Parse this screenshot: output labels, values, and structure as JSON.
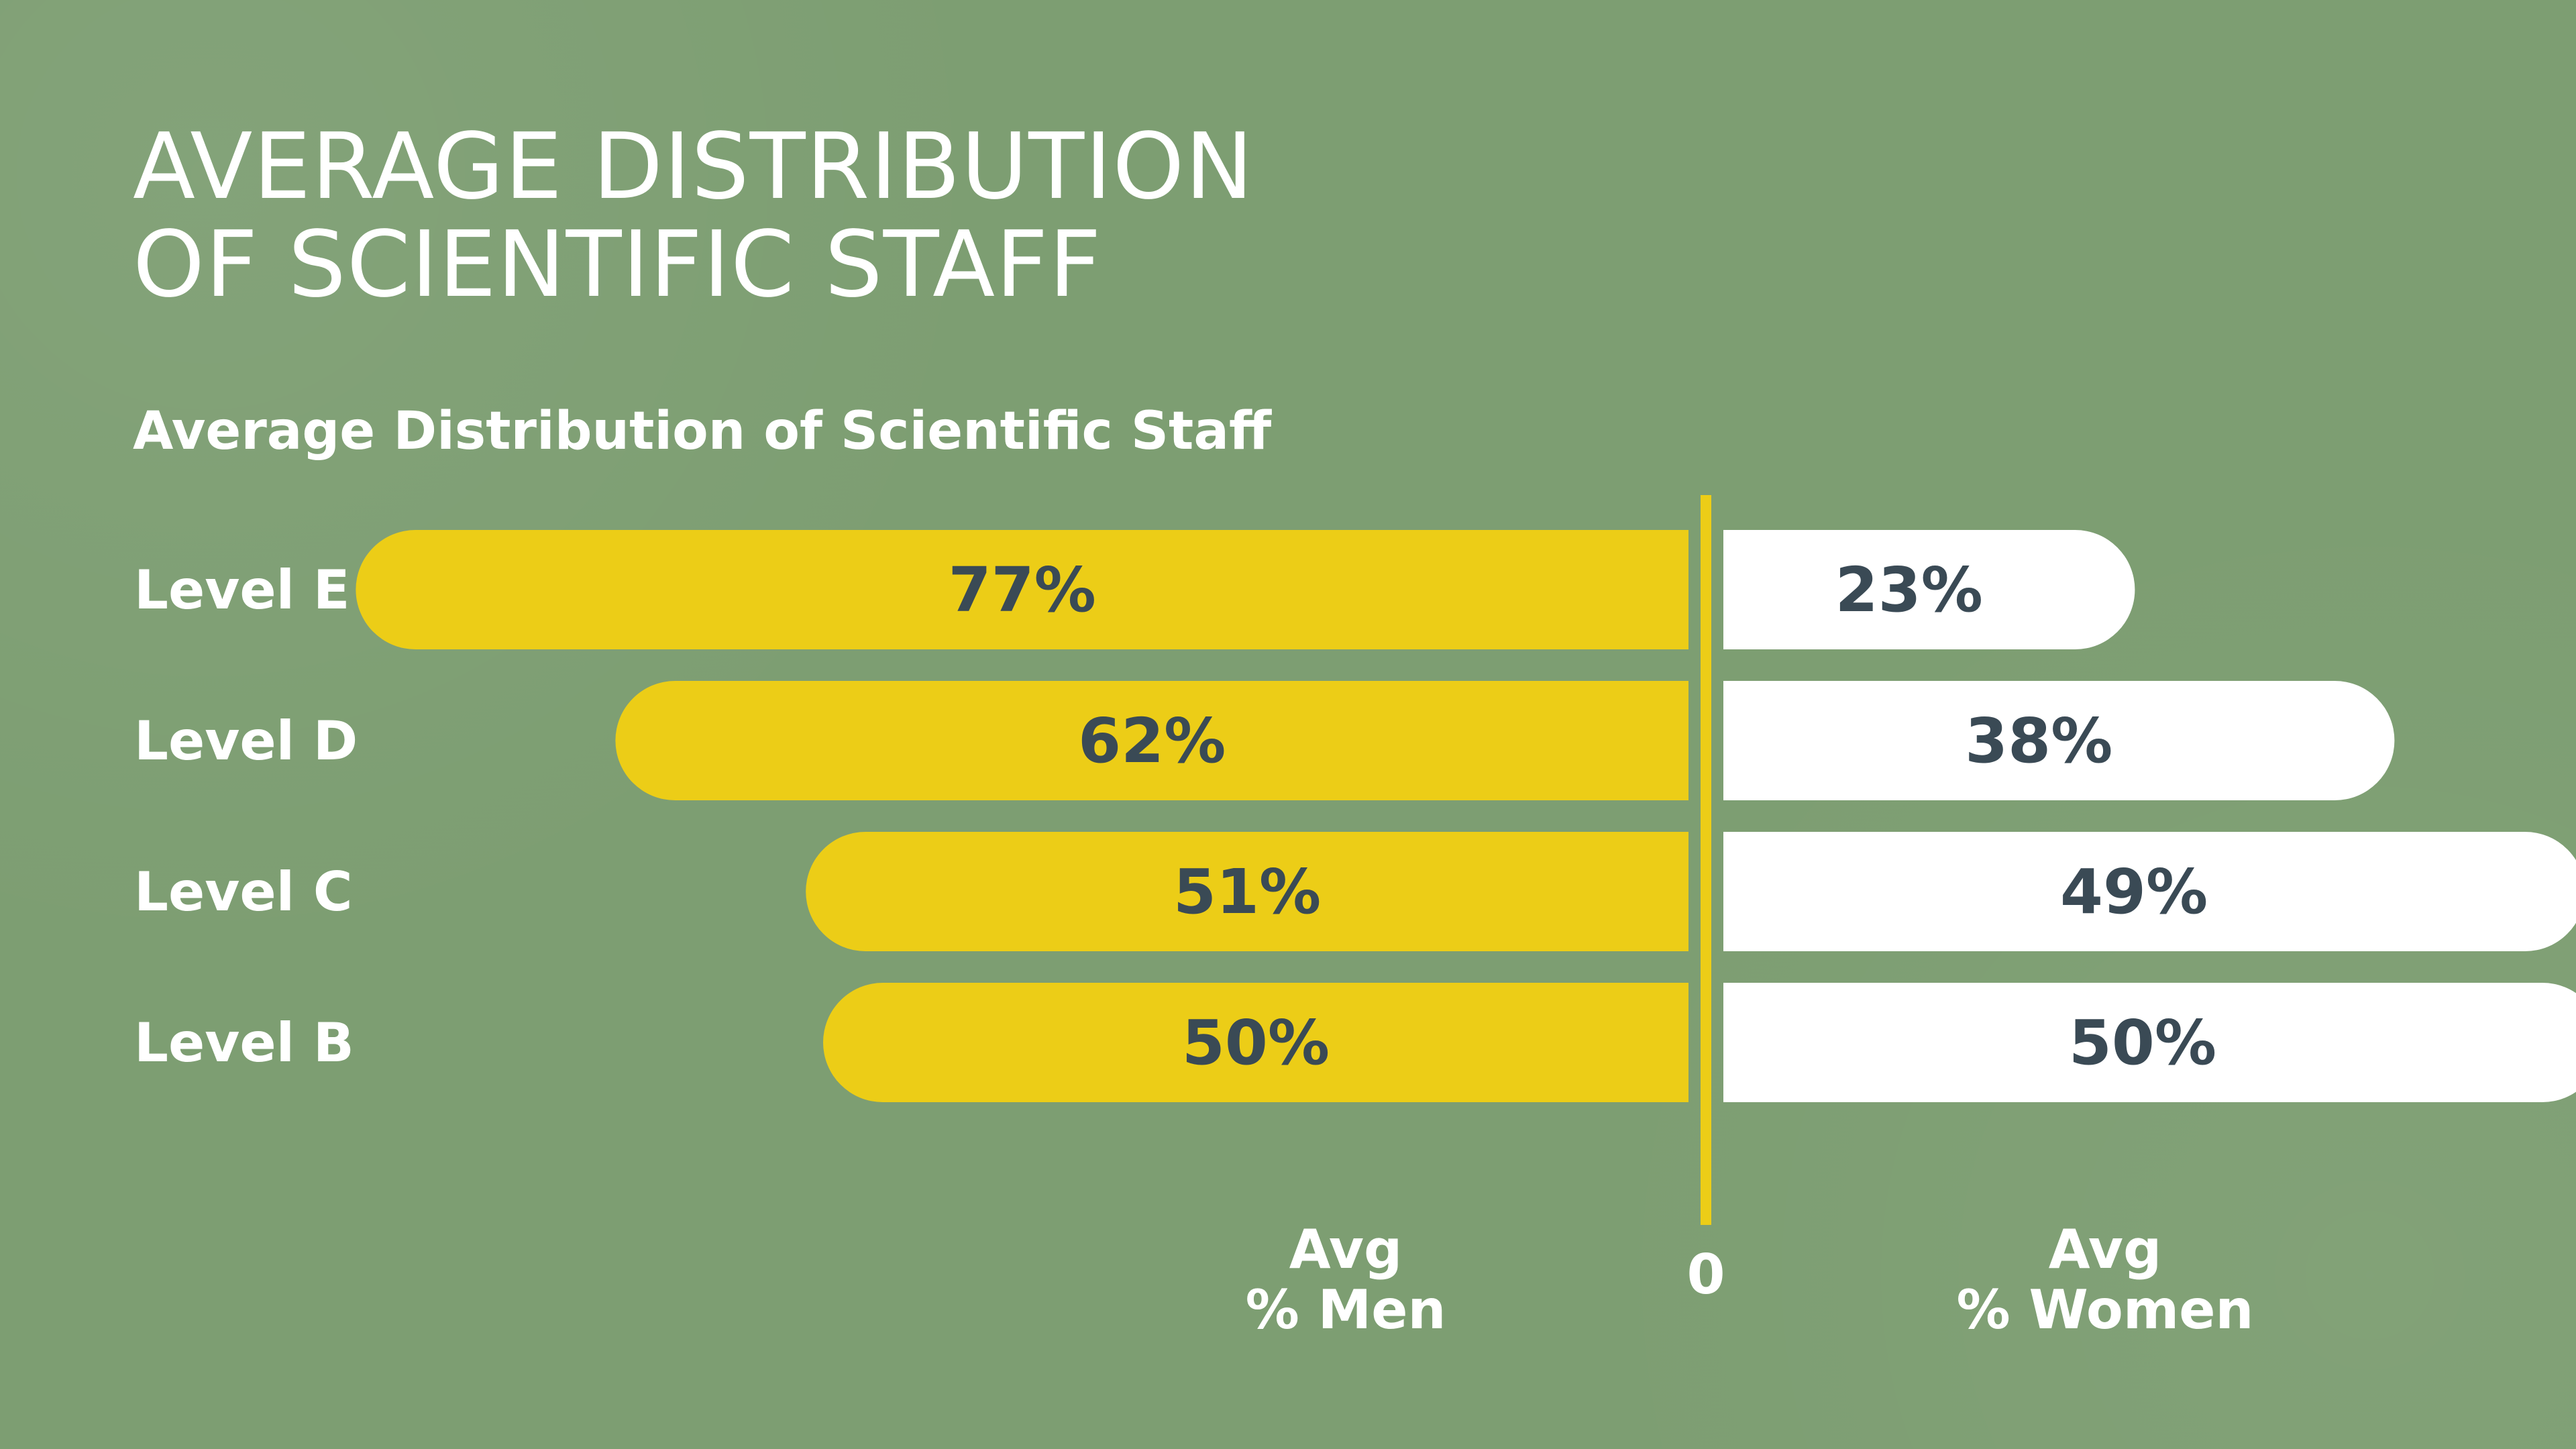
{
  "title_lines": [
    "AVERAGE DISTRIBUTION",
    "OF SCIENTIFIC STAFF"
  ],
  "colors": {
    "background": "#7d9e72",
    "men_bar": "#eccd17",
    "women_bar": "#ffffff",
    "value_text": "#3a4a55",
    "axis": "#eccd17",
    "label_text": "#ffffff"
  },
  "chart_data": {
    "type": "bar",
    "orientation": "horizontal-diverging",
    "title": "Average Distribution of Scientific Staff",
    "categories": [
      "Level  E",
      "Level  D",
      "Level  C",
      "Level  B"
    ],
    "series": [
      {
        "name": "Avg % Men",
        "side": "left",
        "values": [
          77,
          62,
          51,
          50
        ],
        "labels": [
          "77%",
          "62%",
          "51%",
          "50%"
        ]
      },
      {
        "name": "Avg % Women",
        "side": "right",
        "values": [
          23,
          38,
          49,
          50
        ],
        "labels": [
          "23%",
          "38%",
          "49%",
          "50%"
        ]
      }
    ],
    "axis_zero_label": "0",
    "legend": {
      "men": [
        "Avg",
        "% Men"
      ],
      "women": [
        "Avg",
        "% Women"
      ]
    }
  }
}
